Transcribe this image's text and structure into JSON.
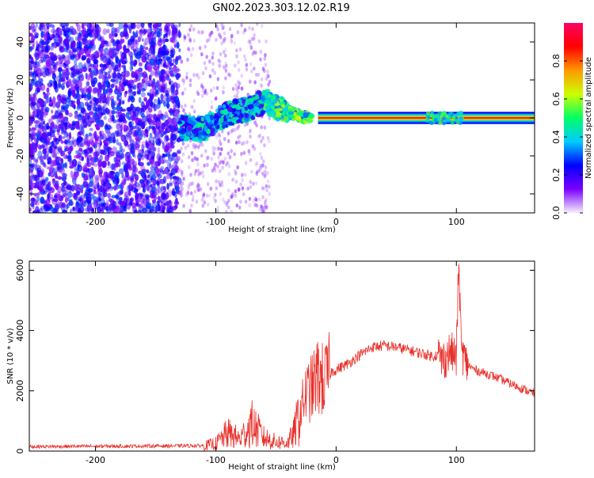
{
  "title": "GN02.2023.303.12.02.R19",
  "chart_data": [
    {
      "type": "heatmap",
      "xlabel": "Height of straight line (km)",
      "ylabel": "Frequency (Hz)",
      "xlim": [
        -255,
        165
      ],
      "ylim": [
        -50,
        50
      ],
      "xticks": [
        -200,
        -100,
        0,
        100
      ],
      "yticks": [
        -40,
        -20,
        0,
        20,
        40
      ],
      "grid": false,
      "colorbar": {
        "label": "Normalized spectral amplitude",
        "ticks": [
          0.0,
          0.2,
          0.4,
          0.6,
          0.8
        ],
        "range": [
          0,
          1
        ],
        "colormap": [
          "#f5f0fb",
          "#7b00ff",
          "#0000ff",
          "#00ccff",
          "#00ff66",
          "#ccff00",
          "#ff9900",
          "#ff0000",
          "#ff0066"
        ]
      },
      "ridge": {
        "x": [
          -130,
          -110,
          -95,
          -85,
          -75,
          -65,
          -58,
          -52,
          -45,
          -38,
          -30,
          -20,
          -10,
          0,
          165
        ],
        "y": [
          -5,
          -6,
          1,
          3,
          4,
          7,
          9,
          6,
          5,
          3,
          1,
          0,
          0,
          0,
          0
        ]
      }
    },
    {
      "type": "line",
      "xlabel": "Height of straight line (km)",
      "ylabel": "SNR (10 * v/v)",
      "xlim": [
        -255,
        165
      ],
      "ylim": [
        0,
        6300
      ],
      "xticks": [
        -200,
        -100,
        0,
        100
      ],
      "yticks": [
        0,
        2000,
        4000,
        6000
      ],
      "grid": false,
      "color": "#e8312b",
      "series": [
        {
          "x": [
            -255,
            -200,
            -150,
            -110,
            -100,
            -90,
            -80,
            -70,
            -60,
            -50,
            -40,
            -35,
            -30,
            -25,
            -20,
            -15,
            -10,
            -5,
            0,
            10,
            20,
            30,
            40,
            50,
            60,
            70,
            80,
            85,
            88,
            90,
            95,
            100,
            102,
            104,
            108,
            115,
            130,
            150,
            165
          ],
          "y": [
            150,
            160,
            170,
            180,
            250,
            600,
            400,
            900,
            450,
            300,
            280,
            600,
            1300,
            1900,
            2100,
            2500,
            2300,
            2600,
            2700,
            2900,
            3200,
            3450,
            3500,
            3450,
            3350,
            3250,
            3150,
            3200,
            3000,
            3050,
            3300,
            3100,
            6300,
            3400,
            2900,
            2700,
            2500,
            2150,
            1900
          ]
        }
      ]
    }
  ]
}
